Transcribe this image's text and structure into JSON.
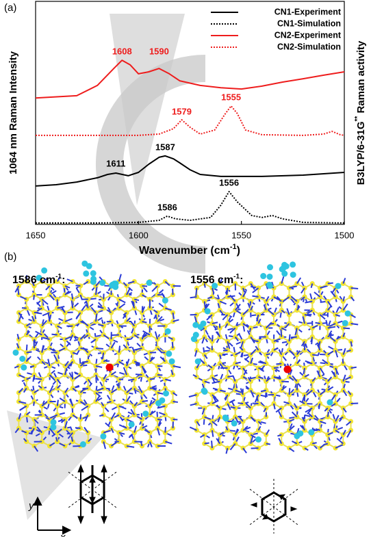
{
  "panel_a_label": "(a)",
  "chart_data": {
    "type": "line",
    "x_label": {
      "text": "Wavenumber (cm",
      "sup": "-1",
      "end": ")"
    },
    "y_label": "1064 nm Raman Intensity",
    "y2_label": {
      "text": "B3LYP/6-31G",
      "sup": "**",
      "end": " Raman activity"
    },
    "xlim": [
      1650,
      1500
    ],
    "xticks": [
      1650,
      1600,
      1550,
      1500
    ],
    "ylim": [
      0,
      100
    ],
    "legend": "upper right",
    "series": [
      {
        "name": "CN1-Experiment",
        "color": "#000000",
        "style": "solid",
        "x": [
          1650,
          1640,
          1630,
          1620,
          1615,
          1611,
          1605,
          1600,
          1595,
          1590,
          1587,
          1583,
          1580,
          1575,
          1570,
          1560,
          1550,
          1540,
          1520,
          1500
        ],
        "values": [
          17.2,
          17.8,
          19.0,
          20.9,
          22.4,
          23.0,
          21.8,
          23.3,
          27.0,
          30.1,
          30.7,
          29.4,
          27.6,
          24.5,
          22.4,
          21.5,
          21.5,
          21.5,
          22.1,
          23.3
        ]
      },
      {
        "name": "CN1-Simulation",
        "color": "#000000",
        "style": "dotted",
        "x": [
          1650,
          1620,
          1600,
          1590,
          1586,
          1582,
          1575,
          1565,
          1560,
          1556,
          1552,
          1545,
          1540,
          1535,
          1530,
          1520,
          1500
        ],
        "values": [
          0.6,
          0.6,
          0.9,
          1.8,
          3.7,
          2.5,
          1.8,
          3.1,
          8.6,
          14.7,
          10.1,
          4.0,
          3.1,
          4.0,
          2.5,
          0.9,
          0.6
        ]
      },
      {
        "name": "CN2-Experiment",
        "color": "#ee1c1c",
        "style": "solid",
        "x": [
          1650,
          1630,
          1620,
          1612,
          1608,
          1604,
          1600,
          1595,
          1590,
          1585,
          1580,
          1570,
          1560,
          1550,
          1540,
          1530,
          1520,
          1510,
          1500
        ],
        "values": [
          56.7,
          57.7,
          62.3,
          69.9,
          73.6,
          71.5,
          67.5,
          68.4,
          69.9,
          67.5,
          64.4,
          62.3,
          61.3,
          60.7,
          62.0,
          63.8,
          65.3,
          66.9,
          68.4
        ]
      },
      {
        "name": "CN2-Simulation",
        "color": "#ee1c1c",
        "style": "dotted",
        "x": [
          1650,
          1600,
          1590,
          1583,
          1579,
          1575,
          1570,
          1563,
          1558,
          1555,
          1552,
          1548,
          1540,
          1520,
          1510,
          1506,
          1502,
          1500
        ],
        "values": [
          39.9,
          39.9,
          40.5,
          42.9,
          46.9,
          43.6,
          40.5,
          42.3,
          49.4,
          53.1,
          49.7,
          42.3,
          40.2,
          39.9,
          40.5,
          41.7,
          40.2,
          39.9
        ]
      }
    ],
    "annotations": [
      {
        "label": "1608",
        "x": 1608,
        "color": "#ee1c1c"
      },
      {
        "label": "1590",
        "x": 1590,
        "color": "#ee1c1c"
      },
      {
        "label": "1579",
        "x": 1579,
        "color": "#ee1c1c"
      },
      {
        "label": "1555",
        "x": 1555,
        "color": "#ee1c1c"
      },
      {
        "label": "1611",
        "x": 1611,
        "color": "#000000"
      },
      {
        "label": "1587",
        "x": 1587,
        "color": "#000000"
      },
      {
        "label": "1556",
        "x": 1556,
        "color": "#000000"
      },
      {
        "label": "1586",
        "x": 1586,
        "color": "#000000"
      }
    ]
  },
  "panel_b": {
    "label": "(b)",
    "modes": [
      {
        "text": "1586 cm",
        "sup": "-1",
        "end": ":"
      },
      {
        "text": "1556 cm",
        "sup": "-1",
        "end": ":"
      }
    ],
    "axis_y": "y",
    "axis_x": "x"
  }
}
